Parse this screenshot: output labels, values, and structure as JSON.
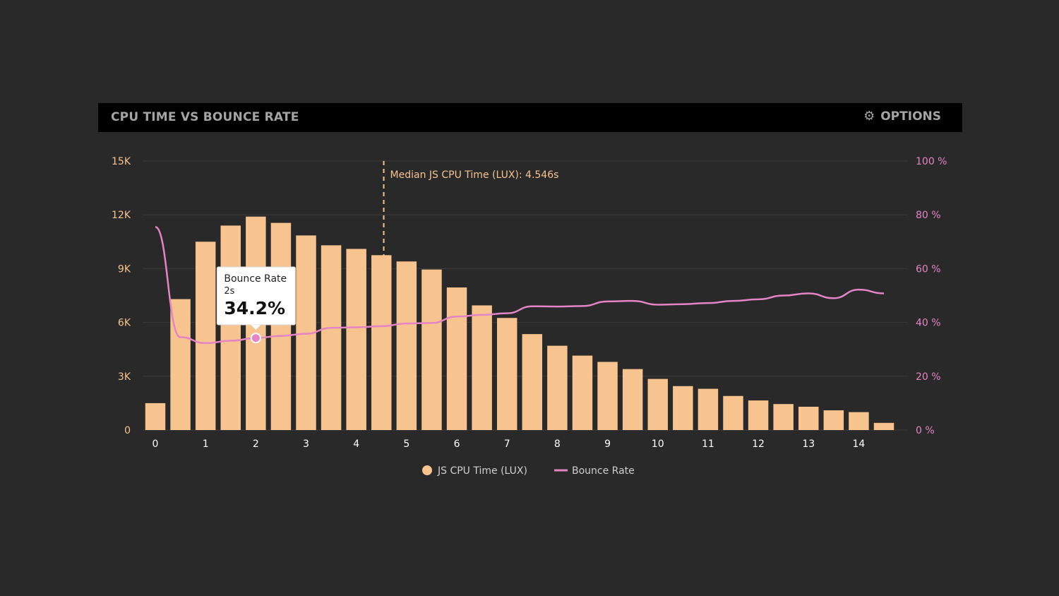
{
  "panel": {
    "title": "CPU TIME VS BOUNCE RATE",
    "options_label": "OPTIONS",
    "options_icon": "gear-icon"
  },
  "colors": {
    "bar": "#f7c48f",
    "line": "#e484c4",
    "grid": "#3b3b3b",
    "left_axis_text": "#f7c48f",
    "right_axis_text": "#e484c4"
  },
  "chart_data": {
    "type": "bar",
    "title": "CPU TIME VS BOUNCE RATE",
    "x": [
      0,
      0.5,
      1,
      1.5,
      2,
      2.5,
      3,
      3.5,
      4,
      4.5,
      5,
      5.5,
      6,
      6.5,
      7,
      7.5,
      8,
      8.5,
      9,
      9.5,
      10,
      10.5,
      11,
      11.5,
      12,
      12.5,
      13,
      13.5,
      14,
      14.5
    ],
    "x_ticks": [
      0,
      1,
      2,
      3,
      4,
      5,
      6,
      7,
      8,
      9,
      10,
      11,
      12,
      13,
      14
    ],
    "xlim": [
      0,
      14.5
    ],
    "series": [
      {
        "name": "JS CPU Time (LUX)",
        "type": "bar",
        "axis": "left",
        "values": [
          1500,
          7300,
          10500,
          11400,
          11900,
          11550,
          10850,
          10300,
          10100,
          9750,
          9400,
          8950,
          7950,
          6950,
          6250,
          5350,
          4700,
          4150,
          3800,
          3400,
          2850,
          2450,
          2300,
          1900,
          1650,
          1450,
          1300,
          1100,
          1000,
          400
        ]
      },
      {
        "name": "Bounce Rate",
        "type": "line",
        "axis": "right",
        "values": [
          75.5,
          34.5,
          32.3,
          33.2,
          34.2,
          35.0,
          35.8,
          38.0,
          38.2,
          38.6,
          39.6,
          39.8,
          42.2,
          42.8,
          43.4,
          46.0,
          45.9,
          46.1,
          47.8,
          48.0,
          46.6,
          46.8,
          47.2,
          48.0,
          48.6,
          50.0,
          50.8,
          49.0,
          52.2,
          50.8
        ]
      }
    ],
    "y_left": {
      "ticks": [
        0,
        3000,
        6000,
        9000,
        12000,
        15000
      ],
      "tick_labels": [
        "0",
        "3K",
        "6K",
        "9K",
        "12K",
        "15K"
      ],
      "ylim": [
        0,
        15000
      ]
    },
    "y_right": {
      "ticks": [
        0,
        20,
        40,
        60,
        80,
        100
      ],
      "tick_labels": [
        "0 %",
        "20 %",
        "40 %",
        "60 %",
        "80 %",
        "100 %"
      ],
      "ylim": [
        0,
        100
      ]
    },
    "median_marker": {
      "x": 4.546,
      "label": "Median JS CPU Time (LUX): 4.546s"
    },
    "tooltip": {
      "series": "Bounce Rate",
      "x_label": "2s",
      "value_label": "34.2%",
      "x": 2,
      "value": 34.2
    },
    "legend": {
      "position": "bottom-center",
      "items": [
        "JS CPU Time (LUX)",
        "Bounce Rate"
      ]
    },
    "grid": true
  }
}
